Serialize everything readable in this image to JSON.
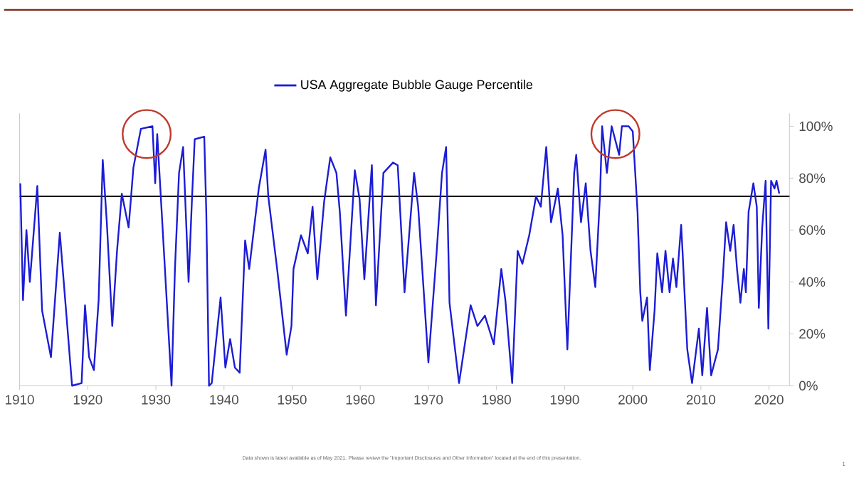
{
  "chart_data": {
    "type": "line",
    "xlim": [
      1910,
      2023
    ],
    "xticks": [
      1910,
      1920,
      1930,
      1940,
      1950,
      1960,
      1970,
      1980,
      1990,
      2000,
      2010,
      2020
    ],
    "ylim": [
      0,
      105
    ],
    "yticks": [
      {
        "value": 0,
        "label": "0%"
      },
      {
        "value": 20,
        "label": "20%"
      },
      {
        "value": 40,
        "label": "40%"
      },
      {
        "value": 60,
        "label": "60%"
      },
      {
        "value": 80,
        "label": "80%"
      },
      {
        "value": 100,
        "label": "100%"
      }
    ],
    "legend": "top",
    "marker": "none",
    "line_style": "solid",
    "ref_lines": [
      {
        "axis": "y",
        "value": 73,
        "color": "#000000"
      }
    ],
    "annotations": [
      "Data shown is latest available as of May 2021. Please review the \"Important Disclosures and Other Information\" located at the end of this presentation.",
      "1"
    ],
    "series": [
      {
        "name": "USA Aggregate Bubble Gauge Percentile",
        "color": "#1c1cd6",
        "x": [
          1910.1,
          1910.5,
          1911.0,
          1911.5,
          1912.6,
          1913.3,
          1914.6,
          1915.9,
          1916.6,
          1917.7,
          1919.1,
          1919.6,
          1920.2,
          1920.9,
          1921.6,
          1922.2,
          1922.8,
          1923.6,
          1924.3,
          1925.0,
          1926.0,
          1926.7,
          1927.8,
          1929.5,
          1929.9,
          1930.2,
          1931.2,
          1932.3,
          1932.8,
          1933.4,
          1934.0,
          1934.8,
          1935.3,
          1935.7,
          1937.1,
          1937.4,
          1937.8,
          1938.2,
          1939.5,
          1940.2,
          1940.9,
          1941.6,
          1942.3,
          1943.1,
          1943.7,
          1945.1,
          1946.1,
          1946.5,
          1947.8,
          1949.2,
          1949.9,
          1950.2,
          1951.3,
          1952.3,
          1953.0,
          1953.7,
          1954.7,
          1955.6,
          1956.5,
          1957.0,
          1957.9,
          1959.2,
          1959.9,
          1960.6,
          1961.7,
          1962.3,
          1963.4,
          1964.8,
          1965.5,
          1966.5,
          1967.9,
          1968.5,
          1970.0,
          1971.2,
          1972.0,
          1972.6,
          1973.1,
          1974.5,
          1976.2,
          1977.2,
          1978.3,
          1979.6,
          1980.7,
          1981.3,
          1982.3,
          1983.1,
          1983.8,
          1984.8,
          1985.8,
          1986.5,
          1987.3,
          1988.0,
          1989.0,
          1989.7,
          1990.4,
          1991.4,
          1991.7,
          1992.4,
          1993.1,
          1993.8,
          1994.5,
          1995.2,
          1995.5,
          1996.2,
          1996.9,
          1998.0,
          1998.4,
          1999.4,
          2000.0,
          2000.7,
          2001.1,
          2001.4,
          2002.1,
          2002.5,
          2003.2,
          2003.6,
          2004.3,
          2004.8,
          2005.4,
          2005.9,
          2006.4,
          2007.1,
          2007.3,
          2008.0,
          2008.7,
          2009.7,
          2010.2,
          2010.9,
          2011.5,
          2012.5,
          2013.2,
          2013.7,
          2014.3,
          2014.8,
          2015.3,
          2015.8,
          2016.3,
          2016.6,
          2017.0,
          2017.7,
          2018.2,
          2018.5,
          2019.0,
          2019.5,
          2019.9,
          2020.3,
          2020.8,
          2021.1,
          2021.5
        ],
        "values": [
          78,
          33,
          60,
          40,
          77,
          29,
          11,
          59,
          36,
          0,
          1,
          31,
          11,
          6,
          33,
          87,
          63,
          23,
          52,
          74,
          61,
          84,
          99,
          100,
          78,
          97,
          51,
          0,
          45,
          82,
          92,
          40,
          72,
          95,
          96,
          67,
          0,
          1,
          34,
          7,
          18,
          7,
          5,
          56,
          45,
          76,
          91,
          73,
          45,
          12,
          23,
          45,
          58,
          51,
          69,
          41,
          71,
          88,
          82,
          67,
          27,
          83,
          72,
          41,
          85,
          31,
          82,
          86,
          85,
          36,
          82,
          69,
          9,
          51,
          82,
          92,
          32,
          1,
          31,
          23,
          27,
          16,
          45,
          33,
          1,
          52,
          47,
          58,
          73,
          69,
          92,
          63,
          76,
          58,
          14,
          82,
          89,
          63,
          78,
          52,
          38,
          74,
          100,
          82,
          100,
          89,
          100,
          100,
          98,
          67,
          36,
          25,
          34,
          6,
          29,
          51,
          36,
          52,
          36,
          49,
          38,
          62,
          52,
          14,
          1,
          22,
          4,
          30,
          4,
          14,
          41,
          63,
          52,
          62,
          45,
          32,
          45,
          36,
          67,
          78,
          69,
          30,
          61,
          79,
          22,
          79,
          76,
          79,
          74
        ]
      }
    ]
  }
}
